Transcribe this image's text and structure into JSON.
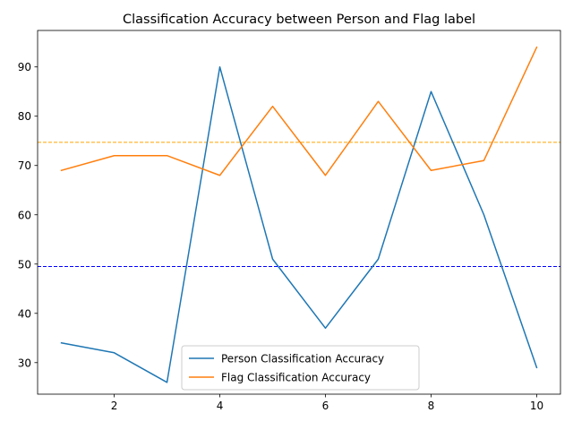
{
  "chart_data": {
    "type": "line",
    "title": "Classification Accuracy between Person and Flag label",
    "xlabel": "",
    "ylabel": "",
    "x": [
      1,
      2,
      3,
      4,
      5,
      6,
      7,
      8,
      9,
      10
    ],
    "xlim": [
      0.55,
      10.45
    ],
    "ylim": [
      23.6,
      97.4
    ],
    "xticks": [
      2,
      4,
      6,
      8,
      10
    ],
    "yticks": [
      30,
      40,
      50,
      60,
      70,
      80,
      90
    ],
    "grid": false,
    "legend_position": "lower center",
    "series": [
      {
        "name": "Person Classification Accuracy",
        "color": "#1f77b4",
        "values": [
          34,
          32,
          26,
          90,
          51,
          37,
          51,
          85,
          60,
          29
        ]
      },
      {
        "name": "Flag Classification Accuracy",
        "color": "#ff7f0e",
        "values": [
          69,
          72,
          72,
          68,
          82,
          68,
          83,
          69,
          71,
          94
        ]
      }
    ],
    "reference_lines": [
      {
        "axis": "y",
        "value": 49.5,
        "color": "#0000ff",
        "style": "dashed"
      },
      {
        "axis": "y",
        "value": 74.7,
        "color": "#ffa500",
        "style": "dashed"
      }
    ]
  }
}
